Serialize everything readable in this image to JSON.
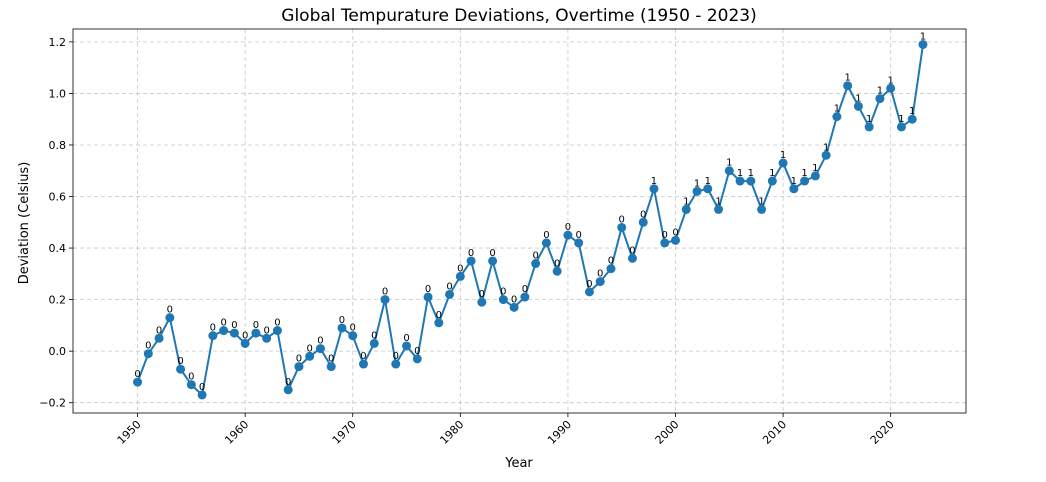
{
  "chart_data": {
    "type": "line",
    "title": "Global Tempurature Deviations, Overtime (1950 - 2023)",
    "xlabel": "Year",
    "ylabel": "Deviation (Celsius)",
    "xlim": [
      1944,
      2027
    ],
    "ylim": [
      -0.24,
      1.25
    ],
    "xticks": [
      1950,
      1960,
      1970,
      1980,
      1990,
      2000,
      2010,
      2020
    ],
    "yticks": [
      -0.2,
      0.0,
      0.2,
      0.4,
      0.6,
      0.8,
      1.0,
      1.2
    ],
    "ytick_labels": [
      "−0.2",
      "0.0",
      "0.2",
      "0.4",
      "0.6",
      "0.8",
      "1.0",
      "1.2"
    ],
    "grid": true,
    "line_color": "#1f77b4",
    "x": [
      1950,
      1951,
      1952,
      1953,
      1954,
      1955,
      1956,
      1957,
      1958,
      1959,
      1960,
      1961,
      1962,
      1963,
      1964,
      1965,
      1966,
      1967,
      1968,
      1969,
      1970,
      1971,
      1972,
      1973,
      1974,
      1975,
      1976,
      1977,
      1978,
      1979,
      1980,
      1981,
      1982,
      1983,
      1984,
      1985,
      1986,
      1987,
      1988,
      1989,
      1990,
      1991,
      1992,
      1993,
      1994,
      1995,
      1996,
      1997,
      1998,
      1999,
      2000,
      2001,
      2002,
      2003,
      2004,
      2005,
      2006,
      2007,
      2008,
      2009,
      2010,
      2011,
      2012,
      2013,
      2014,
      2015,
      2016,
      2017,
      2018,
      2019,
      2020,
      2021,
      2022,
      2023
    ],
    "values": [
      -0.12,
      -0.01,
      0.05,
      0.13,
      -0.07,
      -0.13,
      -0.17,
      0.06,
      0.08,
      0.07,
      0.03,
      0.07,
      0.05,
      0.08,
      -0.15,
      -0.06,
      -0.02,
      0.01,
      -0.06,
      0.09,
      0.06,
      -0.05,
      0.03,
      0.2,
      -0.05,
      0.02,
      -0.03,
      0.21,
      0.11,
      0.22,
      0.29,
      0.35,
      0.19,
      0.35,
      0.2,
      0.17,
      0.21,
      0.34,
      0.42,
      0.31,
      0.45,
      0.42,
      0.23,
      0.27,
      0.32,
      0.48,
      0.36,
      0.5,
      0.63,
      0.42,
      0.43,
      0.55,
      0.62,
      0.63,
      0.55,
      0.7,
      0.66,
      0.66,
      0.55,
      0.66,
      0.73,
      0.63,
      0.66,
      0.68,
      0.76,
      0.91,
      1.03,
      0.95,
      0.87,
      0.98,
      1.02,
      0.87,
      0.9,
      1.19
    ],
    "data_labels": [
      "0",
      "0",
      "0",
      "0",
      "0",
      "0",
      "0",
      "0",
      "0",
      "0",
      "0",
      "0",
      "0",
      "0",
      "0",
      "0",
      "0",
      "0",
      "0",
      "0",
      "0",
      "0",
      "0",
      "0",
      "0",
      "0",
      "0",
      "0",
      "0",
      "0",
      "0",
      "0",
      "0",
      "0",
      "0",
      "0",
      "0",
      "0",
      "0",
      "0",
      "0",
      "0",
      "0",
      "0",
      "0",
      "0",
      "0",
      "0",
      "1",
      "0",
      "0",
      "1",
      "1",
      "1",
      "1",
      "1",
      "1",
      "1",
      "1",
      "1",
      "1",
      "1",
      "1",
      "1",
      "1",
      "1",
      "1",
      "1",
      "1",
      "1",
      "1",
      "1",
      "1",
      "1"
    ]
  }
}
